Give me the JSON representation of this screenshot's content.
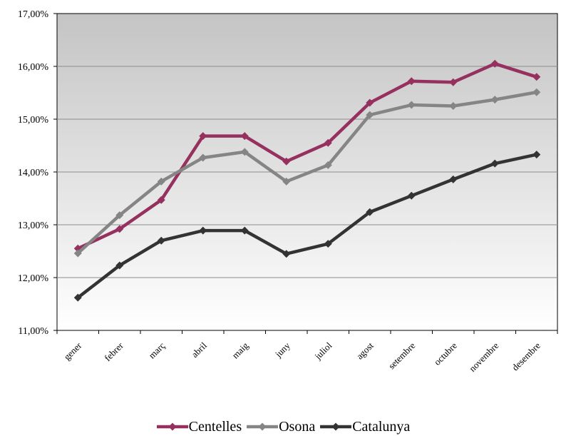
{
  "chart_data": {
    "type": "line",
    "categories": [
      "gener",
      "febrer",
      "març",
      "abril",
      "maig",
      "juny",
      "juliol",
      "agost",
      "setembre",
      "octubre",
      "novembre",
      "desembre"
    ],
    "ylim": [
      11,
      17
    ],
    "yticks": [
      11,
      12,
      13,
      14,
      15,
      16,
      17
    ],
    "ytick_labels": [
      "11,00%",
      "12,00%",
      "13,00%",
      "14,00%",
      "15,00%",
      "16,00%",
      "17,00%"
    ],
    "grid": "horizontal",
    "legend_position": "bottom",
    "plot_background": "vertical gradient, gray top to white bottom",
    "series": [
      {
        "name": "Centelles",
        "color": "#96305f",
        "values": [
          12.55,
          12.92,
          13.47,
          14.68,
          14.68,
          14.2,
          14.55,
          15.31,
          15.72,
          15.7,
          16.05,
          15.8
        ]
      },
      {
        "name": "Osona",
        "color": "#858585",
        "values": [
          12.46,
          13.18,
          13.82,
          14.27,
          14.38,
          13.82,
          14.13,
          15.08,
          15.27,
          15.25,
          15.37,
          15.51
        ]
      },
      {
        "name": "Catalunya",
        "color": "#333333",
        "values": [
          11.62,
          12.23,
          12.7,
          12.89,
          12.89,
          12.45,
          12.64,
          13.24,
          13.55,
          13.86,
          14.16,
          14.33
        ]
      }
    ]
  }
}
